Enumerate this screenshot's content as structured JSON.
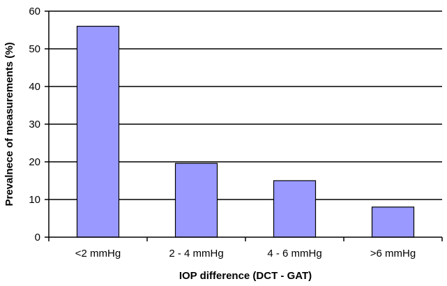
{
  "chart_data": {
    "type": "bar",
    "title": "",
    "xlabel": "IOP difference (DCT - GAT)",
    "ylabel": "Prevalnece of measurements (%)",
    "categories": [
      "<2 mmHg",
      "2 - 4 mmHg",
      "4 - 6 mmHg",
      ">6 mmHg"
    ],
    "values": [
      56,
      19.6,
      15,
      8
    ],
    "ylim": [
      0,
      60
    ],
    "yticks": [
      0,
      10,
      20,
      30,
      40,
      50,
      60
    ],
    "grid": true,
    "legend": "none",
    "colors": {
      "bar_fill": "#9999ff",
      "bar_stroke": "#000000",
      "grid": "#000000"
    }
  }
}
